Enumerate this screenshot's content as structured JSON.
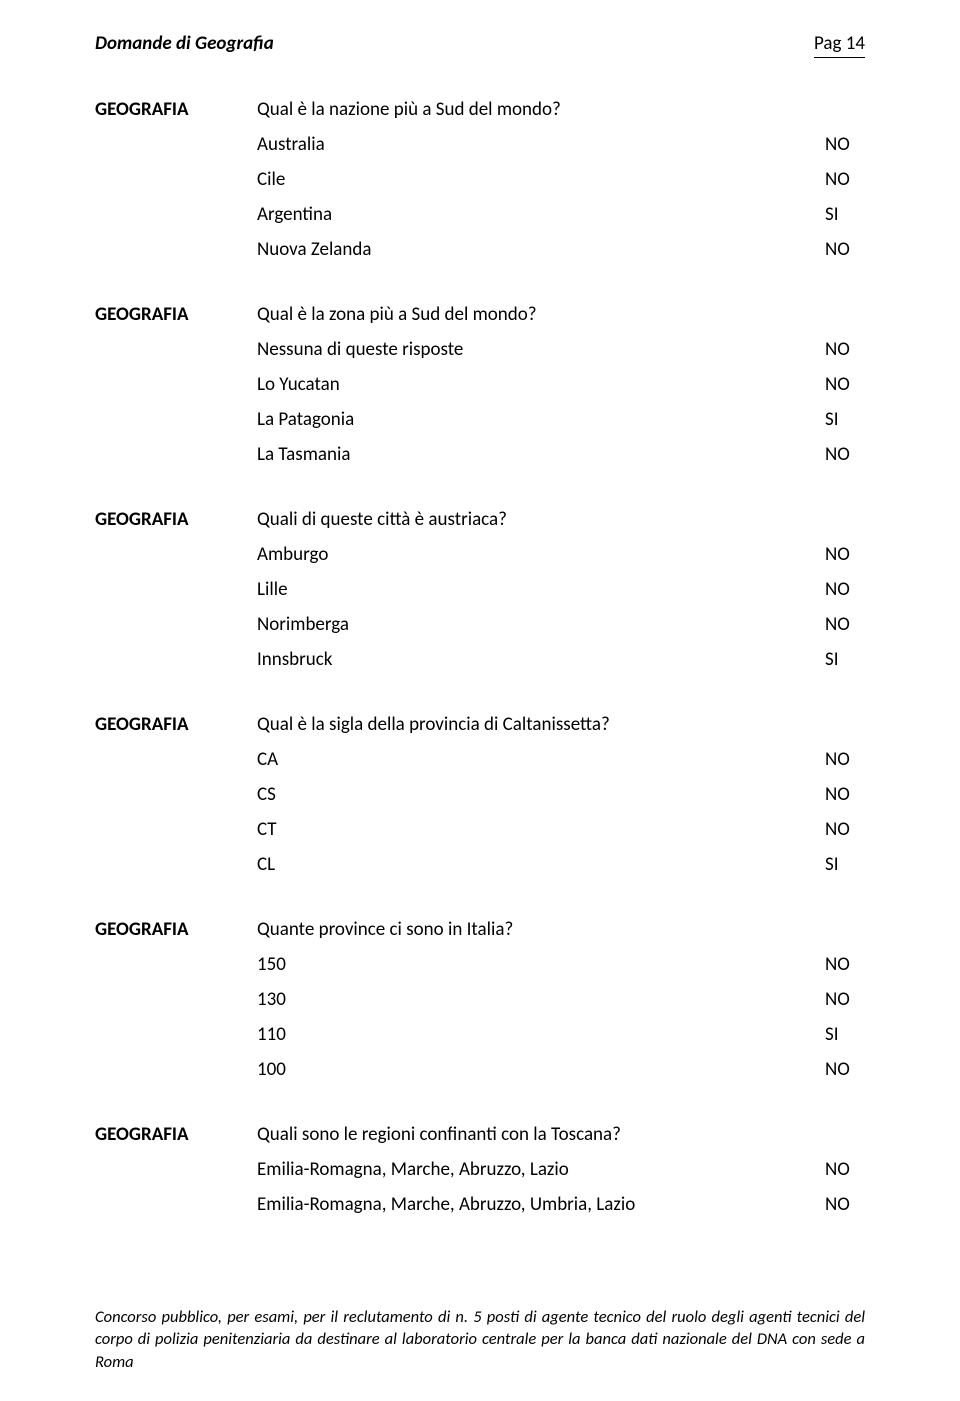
{
  "header": {
    "title": "Domande di Geografia",
    "page_label": "Pag 14"
  },
  "category_label": "GEOGRAFIA",
  "questions": [
    {
      "text": "Qual è la nazione più a Sud del mondo?",
      "answers": [
        {
          "text": "Australia",
          "value": "NO"
        },
        {
          "text": "Cile",
          "value": "NO"
        },
        {
          "text": "Argentina",
          "value": "SI"
        },
        {
          "text": "Nuova Zelanda",
          "value": "NO"
        }
      ]
    },
    {
      "text": "Qual è la zona più a Sud del mondo?",
      "answers": [
        {
          "text": "Nessuna di queste risposte",
          "value": "NO"
        },
        {
          "text": "Lo Yucatan",
          "value": "NO"
        },
        {
          "text": "La Patagonia",
          "value": "SI"
        },
        {
          "text": "La Tasmania",
          "value": "NO"
        }
      ]
    },
    {
      "text": "Quali di queste città è austriaca?",
      "answers": [
        {
          "text": "Amburgo",
          "value": "NO"
        },
        {
          "text": "Lille",
          "value": "NO"
        },
        {
          "text": "Norimberga",
          "value": "NO"
        },
        {
          "text": "Innsbruck",
          "value": "SI"
        }
      ]
    },
    {
      "text": "Qual è la sigla della provincia di Caltanissetta?",
      "answers": [
        {
          "text": "CA",
          "value": "NO"
        },
        {
          "text": "CS",
          "value": "NO"
        },
        {
          "text": "CT",
          "value": "NO"
        },
        {
          "text": "CL",
          "value": "SI"
        }
      ]
    },
    {
      "text": "Quante province ci sono in Italia?",
      "answers": [
        {
          "text": "150",
          "value": "NO"
        },
        {
          "text": "130",
          "value": "NO"
        },
        {
          "text": "110",
          "value": "SI"
        },
        {
          "text": "100",
          "value": "NO"
        }
      ]
    },
    {
      "text": "Quali sono le regioni confinanti con la Toscana?",
      "answers": [
        {
          "text": "Emilia-Romagna, Marche, Abruzzo, Lazio",
          "value": "NO"
        },
        {
          "text": "Emilia-Romagna, Marche, Abruzzo, Umbria, Lazio",
          "value": "NO"
        }
      ]
    }
  ],
  "footer": "Concorso pubblico, per esami, per il reclutamento di n. 5 posti di agente tecnico del ruolo degli agenti tecnici del corpo di polizia penitenziaria da destinare al laboratorio centrale per la banca dati nazionale del DNA con sede a Roma"
}
